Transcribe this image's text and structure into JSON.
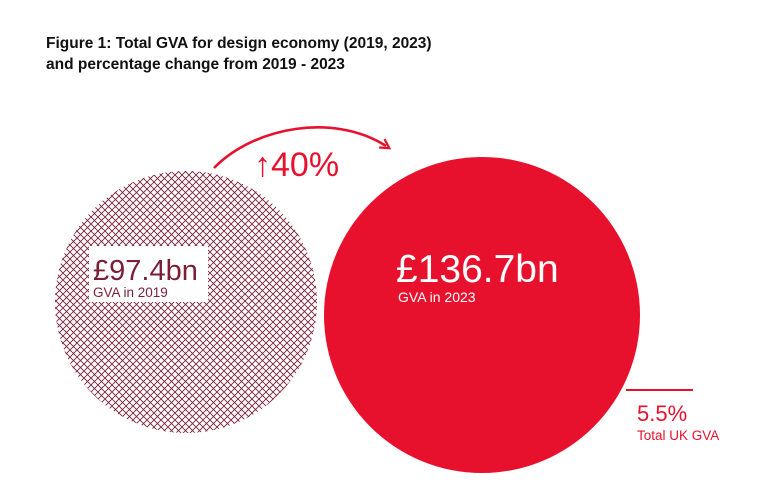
{
  "title_line1": "Figure 1: Total GVA for design economy (2019, 2023)",
  "title_line2": "and percentage change from 2019 - 2023",
  "colors": {
    "accent_red": "#e8112d",
    "hatch_maroon": "#7a1f36",
    "label_maroon": "#7a1f36",
    "title_text": "#111111"
  },
  "chart_data": {
    "type": "bubble",
    "series": [
      {
        "value_label": "£97.4bn",
        "caption": "GVA in 2019",
        "value": 97.4,
        "unit": "£bn",
        "year": 2019
      },
      {
        "value_label": "£136.7bn",
        "caption": "GVA in 2023",
        "value": 136.7,
        "unit": "£bn",
        "year": 2023
      }
    ],
    "change": {
      "arrow": "↑",
      "label": "40%",
      "value": 40
    },
    "share": {
      "label": "5.5%",
      "caption": "Total UK GVA",
      "value": 5.5
    }
  }
}
